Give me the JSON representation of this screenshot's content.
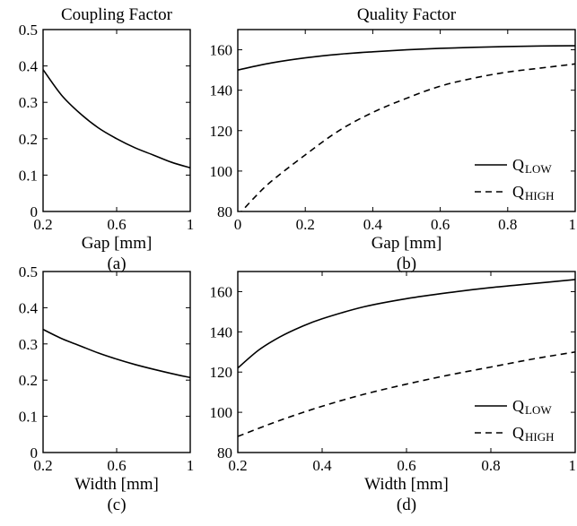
{
  "chart_data": [
    {
      "id": "a",
      "type": "line",
      "title": "Coupling Factor",
      "xlabel": "Gap [mm]",
      "caption": "(a)",
      "xlim": [
        0.2,
        1
      ],
      "ylim": [
        0,
        0.5
      ],
      "xticks": [
        0.2,
        0.6,
        1
      ],
      "xtick_labels": [
        "0.2",
        "0.6",
        "1"
      ],
      "yticks": [
        0,
        0.1,
        0.2,
        0.3,
        0.4,
        0.5
      ],
      "ytick_labels": [
        "0",
        "0.1",
        "0.2",
        "0.3",
        "0.4",
        "0.5"
      ],
      "series": [
        {
          "style": "solid",
          "x": [
            0.2,
            0.3,
            0.4,
            0.5,
            0.6,
            0.7,
            0.8,
            0.9,
            1.0
          ],
          "y": [
            0.39,
            0.32,
            0.27,
            0.23,
            0.2,
            0.175,
            0.155,
            0.135,
            0.12
          ]
        }
      ]
    },
    {
      "id": "b",
      "type": "line",
      "title": "Quality Factor",
      "xlabel": "Gap [mm]",
      "caption": "(b)",
      "xlim": [
        0,
        1
      ],
      "ylim": [
        80,
        170
      ],
      "xticks": [
        0,
        0.2,
        0.4,
        0.6,
        0.8,
        1
      ],
      "xtick_labels": [
        "0",
        "0.2",
        "0.4",
        "0.6",
        "0.8",
        "1"
      ],
      "yticks": [
        80,
        100,
        120,
        140,
        160
      ],
      "ytick_labels": [
        "80",
        "100",
        "120",
        "140",
        "160"
      ],
      "legend_position": "bottom-right",
      "series": [
        {
          "name": "Q",
          "sub": "LOW",
          "style": "solid",
          "x": [
            0,
            0.1,
            0.2,
            0.3,
            0.4,
            0.5,
            0.6,
            0.7,
            0.8,
            0.9,
            1.0
          ],
          "y": [
            150,
            153.5,
            156,
            157.8,
            159,
            160,
            160.7,
            161.2,
            161.6,
            161.9,
            162
          ]
        },
        {
          "name": "Q",
          "sub": "HIGH",
          "style": "dashed",
          "x": [
            0,
            0.05,
            0.1,
            0.2,
            0.3,
            0.4,
            0.5,
            0.6,
            0.7,
            0.8,
            0.9,
            1.0
          ],
          "y": [
            78,
            87,
            95,
            108,
            120,
            129,
            136,
            142,
            146,
            149,
            151,
            153
          ]
        }
      ]
    },
    {
      "id": "c",
      "type": "line",
      "title": "",
      "xlabel": "Width [mm]",
      "caption": "(c)",
      "xlim": [
        0.2,
        1
      ],
      "ylim": [
        0,
        0.5
      ],
      "xticks": [
        0.2,
        0.6,
        1
      ],
      "xtick_labels": [
        "0.2",
        "0.6",
        "1"
      ],
      "yticks": [
        0,
        0.1,
        0.2,
        0.3,
        0.4,
        0.5
      ],
      "ytick_labels": [
        "0",
        "0.1",
        "0.2",
        "0.3",
        "0.4",
        "0.5"
      ],
      "series": [
        {
          "style": "solid",
          "x": [
            0.2,
            0.3,
            0.4,
            0.5,
            0.6,
            0.7,
            0.8,
            0.9,
            1.0
          ],
          "y": [
            0.34,
            0.315,
            0.295,
            0.275,
            0.258,
            0.243,
            0.23,
            0.218,
            0.207
          ]
        }
      ]
    },
    {
      "id": "d",
      "type": "line",
      "title": "",
      "xlabel": "Width [mm]",
      "caption": "(d)",
      "xlim": [
        0.2,
        1
      ],
      "ylim": [
        80,
        170
      ],
      "xticks": [
        0.2,
        0.4,
        0.6,
        0.8,
        1
      ],
      "xtick_labels": [
        "0.2",
        "0.4",
        "0.6",
        "0.8",
        "1"
      ],
      "yticks": [
        80,
        100,
        120,
        140,
        160
      ],
      "ytick_labels": [
        "80",
        "100",
        "120",
        "140",
        "160"
      ],
      "legend_position": "bottom-right",
      "series": [
        {
          "name": "Q",
          "sub": "LOW",
          "style": "solid",
          "x": [
            0.2,
            0.25,
            0.3,
            0.35,
            0.4,
            0.5,
            0.6,
            0.7,
            0.8,
            0.9,
            1.0
          ],
          "y": [
            122,
            131,
            137.5,
            142.5,
            146.5,
            152.5,
            156.5,
            159.5,
            162,
            164,
            166
          ]
        },
        {
          "name": "Q",
          "sub": "HIGH",
          "style": "dashed",
          "x": [
            0.2,
            0.3,
            0.4,
            0.5,
            0.6,
            0.7,
            0.8,
            0.9,
            1.0
          ],
          "y": [
            88,
            96,
            103,
            109,
            114,
            118.5,
            122.5,
            126.5,
            130
          ]
        }
      ]
    }
  ]
}
